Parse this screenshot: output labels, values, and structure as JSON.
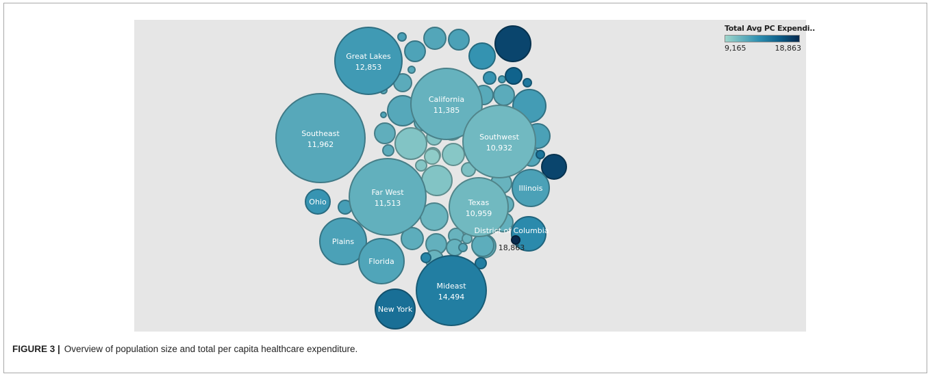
{
  "figure": {
    "caption_label": "FIGURE 3 |",
    "caption_text": "Overview of population size and total per capita healthcare expenditure."
  },
  "legend": {
    "title": "Total Avg PC Expendi..",
    "min_label": "9,165",
    "max_label": "18,863",
    "color_low": "#9fd6cc",
    "color_high": "#08294d"
  },
  "chart_data": {
    "type": "packed-bubble",
    "title": "",
    "size_encoding": "population",
    "color_encoding": "Total Avg PC Expenditure",
    "color_range": [
      9165,
      18863
    ],
    "labeled_bubbles": [
      {
        "name": "Great Lakes",
        "value": 12853,
        "value_label": "12,853"
      },
      {
        "name": "California",
        "value": 11385,
        "value_label": "11,385"
      },
      {
        "name": "Southeast",
        "value": 11962,
        "value_label": "11,962"
      },
      {
        "name": "Southwest",
        "value": 10932,
        "value_label": "10,932"
      },
      {
        "name": "Far West",
        "value": 11513,
        "value_label": "11,513"
      },
      {
        "name": "Texas",
        "value": 10959,
        "value_label": "10,959"
      },
      {
        "name": "Mideast",
        "value": 14494,
        "value_label": "14,494"
      },
      {
        "name": "District of Columbia",
        "value": 18863,
        "value_label": "18,863"
      },
      {
        "name": "Illinois",
        "value": 12400
      },
      {
        "name": "Ohio",
        "value": 13200
      },
      {
        "name": "Plains",
        "value": 12400
      },
      {
        "name": "Florida",
        "value": 12200
      },
      {
        "name": "New York",
        "value": 15300
      }
    ],
    "unlabeled_bubble_count": 51
  }
}
